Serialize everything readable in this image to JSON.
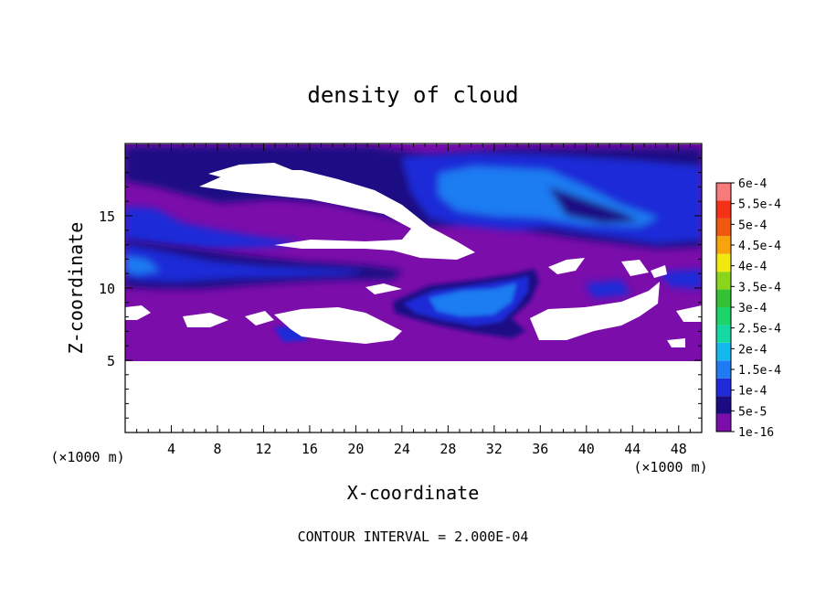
{
  "chart_data": {
    "type": "heatmap",
    "title": "density of cloud",
    "xlabel": "X-coordinate",
    "ylabel": "Z-coordinate",
    "x_unit_label": "(×1000 m)",
    "y_unit_label": "(×1000 m)",
    "xlim": [
      0,
      50
    ],
    "ylim": [
      0,
      20
    ],
    "x_ticks": [
      "4",
      "8",
      "12",
      "16",
      "20",
      "24",
      "28",
      "32",
      "36",
      "40",
      "44",
      "48"
    ],
    "y_ticks": [
      "5",
      "10",
      "15"
    ],
    "footer": "CONTOUR INTERVAL = 2.000E-04",
    "colorbar": {
      "labels": [
        "1e-16",
        "5e-5",
        "1e-4",
        "1.5e-4",
        "2e-4",
        "2.5e-4",
        "3e-4",
        "3.5e-4",
        "4e-4",
        "4.5e-4",
        "5e-4",
        "5.5e-4",
        "6e-4"
      ],
      "colors": [
        "#7b0dab",
        "#1b0c84",
        "#1f2bd8",
        "#1f7bf2",
        "#14b8ee",
        "#16d8a2",
        "#1cd46a",
        "#33c233",
        "#8bd51c",
        "#f0e80f",
        "#f7a40c",
        "#ef5a0f",
        "#f43016",
        "#f87a7a"
      ]
    },
    "field_description": "cloud density field; white = no cloud; purple background band z 5-19; denser blue layers near z 10-12 and z 14-18; blue blob near x 24-34, z 7-10",
    "regions": [
      {
        "level": 0,
        "x": [
          0,
          50
        ],
        "z": [
          5,
          19.7
        ]
      },
      {
        "level": 1,
        "z_band": [
          10,
          12.3
        ],
        "x_range": [
          0,
          24
        ]
      },
      {
        "level": 1,
        "z_band": [
          13.2,
          18.8
        ],
        "x_range": [
          0,
          50
        ]
      },
      {
        "level": 2,
        "z_band": [
          14,
          18
        ],
        "x_range": [
          28,
          50
        ]
      },
      {
        "level": 3,
        "z_band": [
          15,
          17.5
        ],
        "x_range": [
          30,
          40
        ]
      },
      {
        "level": 2,
        "blob": {
          "x": [
            24,
            34
          ],
          "z": [
            7.5,
            10.5
          ]
        }
      }
    ]
  }
}
